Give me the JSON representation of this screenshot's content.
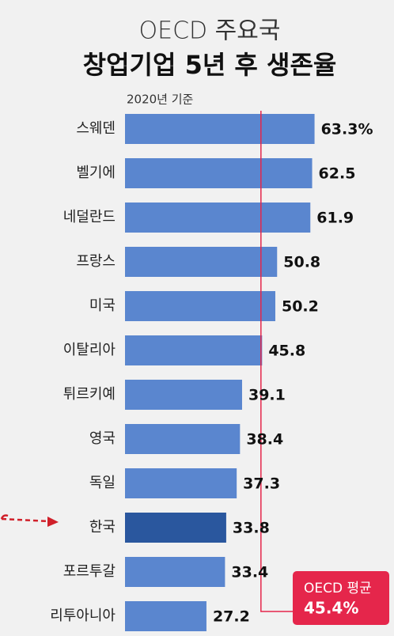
{
  "chart_data": {
    "type": "bar",
    "orientation": "horizontal",
    "title": "OECD 주요국",
    "subtitle": "창업기업 5년 후 생존율",
    "note": "2020년 기준",
    "categories": [
      "스웨덴",
      "벨기에",
      "네덜란드",
      "프랑스",
      "미국",
      "이탈리아",
      "튀르키예",
      "영국",
      "독일",
      "한국",
      "포르투갈",
      "리투아니아"
    ],
    "values": [
      63.3,
      62.5,
      61.9,
      50.8,
      50.2,
      45.8,
      39.1,
      38.4,
      37.3,
      33.8,
      33.4,
      27.2
    ],
    "value_labels": [
      "63.3%",
      "62.5",
      "61.9",
      "50.8",
      "50.2",
      "45.8",
      "39.1",
      "38.4",
      "37.3",
      "33.8",
      "33.4",
      "27.2"
    ],
    "colors": [
      "#5a86cf",
      "#5a86cf",
      "#5a86cf",
      "#5a86cf",
      "#5a86cf",
      "#5a86cf",
      "#5a86cf",
      "#5a86cf",
      "#5a86cf",
      "#2a579e",
      "#5a86cf",
      "#5a86cf"
    ],
    "xlim": [
      0,
      65
    ],
    "average": {
      "name": "OECD 평균",
      "value": 45.4,
      "label": "45.4%",
      "color": "#e5264b"
    }
  }
}
